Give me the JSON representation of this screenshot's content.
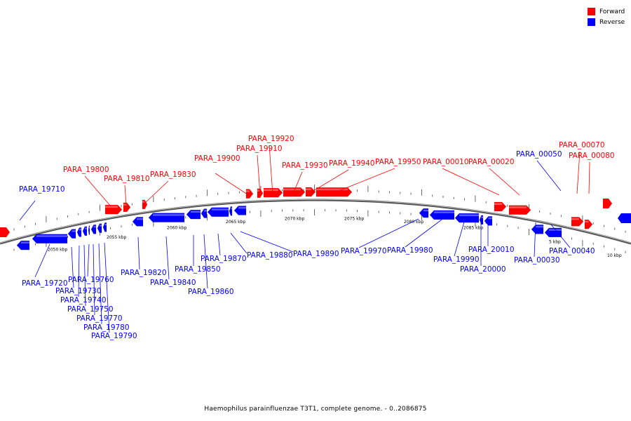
{
  "legend": {
    "forward": {
      "label": "Forward",
      "color": "#ff0000"
    },
    "reverse": {
      "label": "Reverse",
      "color": "#0000ff"
    }
  },
  "caption": "Haemophilus parainfluenzae T3T1, complete genome. - 0..2086875",
  "scale_labels": [
    "2050 kbp",
    "2055 kbp",
    "2060 kbp",
    "2065 kbp",
    "2070 kbp",
    "2075 kbp",
    "2080 kbp",
    "2085 kbp",
    "5 kbp",
    "10 kbp"
  ],
  "genes": [
    {
      "name": "PARA_19710",
      "strand": "reverse"
    },
    {
      "name": "PARA_19720",
      "strand": "reverse"
    },
    {
      "name": "PARA_19730",
      "strand": "reverse"
    },
    {
      "name": "PARA_19740",
      "strand": "reverse"
    },
    {
      "name": "PARA_19750",
      "strand": "reverse"
    },
    {
      "name": "PARA_19760",
      "strand": "reverse"
    },
    {
      "name": "PARA_19770",
      "strand": "reverse"
    },
    {
      "name": "PARA_19780",
      "strand": "reverse"
    },
    {
      "name": "PARA_19790",
      "strand": "reverse"
    },
    {
      "name": "PARA_19800",
      "strand": "forward"
    },
    {
      "name": "PARA_19810",
      "strand": "forward"
    },
    {
      "name": "PARA_19820",
      "strand": "reverse"
    },
    {
      "name": "PARA_19830",
      "strand": "forward"
    },
    {
      "name": "PARA_19840",
      "strand": "reverse"
    },
    {
      "name": "PARA_19850",
      "strand": "reverse"
    },
    {
      "name": "PARA_19860",
      "strand": "reverse"
    },
    {
      "name": "PARA_19870",
      "strand": "reverse"
    },
    {
      "name": "PARA_19880",
      "strand": "reverse"
    },
    {
      "name": "PARA_19890",
      "strand": "reverse"
    },
    {
      "name": "PARA_19900",
      "strand": "forward"
    },
    {
      "name": "PARA_19910",
      "strand": "forward"
    },
    {
      "name": "PARA_19920",
      "strand": "forward"
    },
    {
      "name": "PARA_19930",
      "strand": "forward"
    },
    {
      "name": "PARA_19940",
      "strand": "forward"
    },
    {
      "name": "PARA_19950",
      "strand": "forward"
    },
    {
      "name": "PARA_19970",
      "strand": "reverse"
    },
    {
      "name": "PARA_19980",
      "strand": "reverse"
    },
    {
      "name": "PARA_19990",
      "strand": "reverse"
    },
    {
      "name": "PARA_20000",
      "strand": "reverse"
    },
    {
      "name": "PARA_20010",
      "strand": "reverse"
    },
    {
      "name": "PARA_00010",
      "strand": "forward"
    },
    {
      "name": "PARA_00020",
      "strand": "forward"
    },
    {
      "name": "PARA_00030",
      "strand": "reverse"
    },
    {
      "name": "PARA_00040",
      "strand": "reverse"
    },
    {
      "name": "PARA_00050",
      "strand": "reverse"
    },
    {
      "name": "PARA_00070",
      "strand": "forward"
    },
    {
      "name": "PARA_00080",
      "strand": "forward"
    }
  ]
}
